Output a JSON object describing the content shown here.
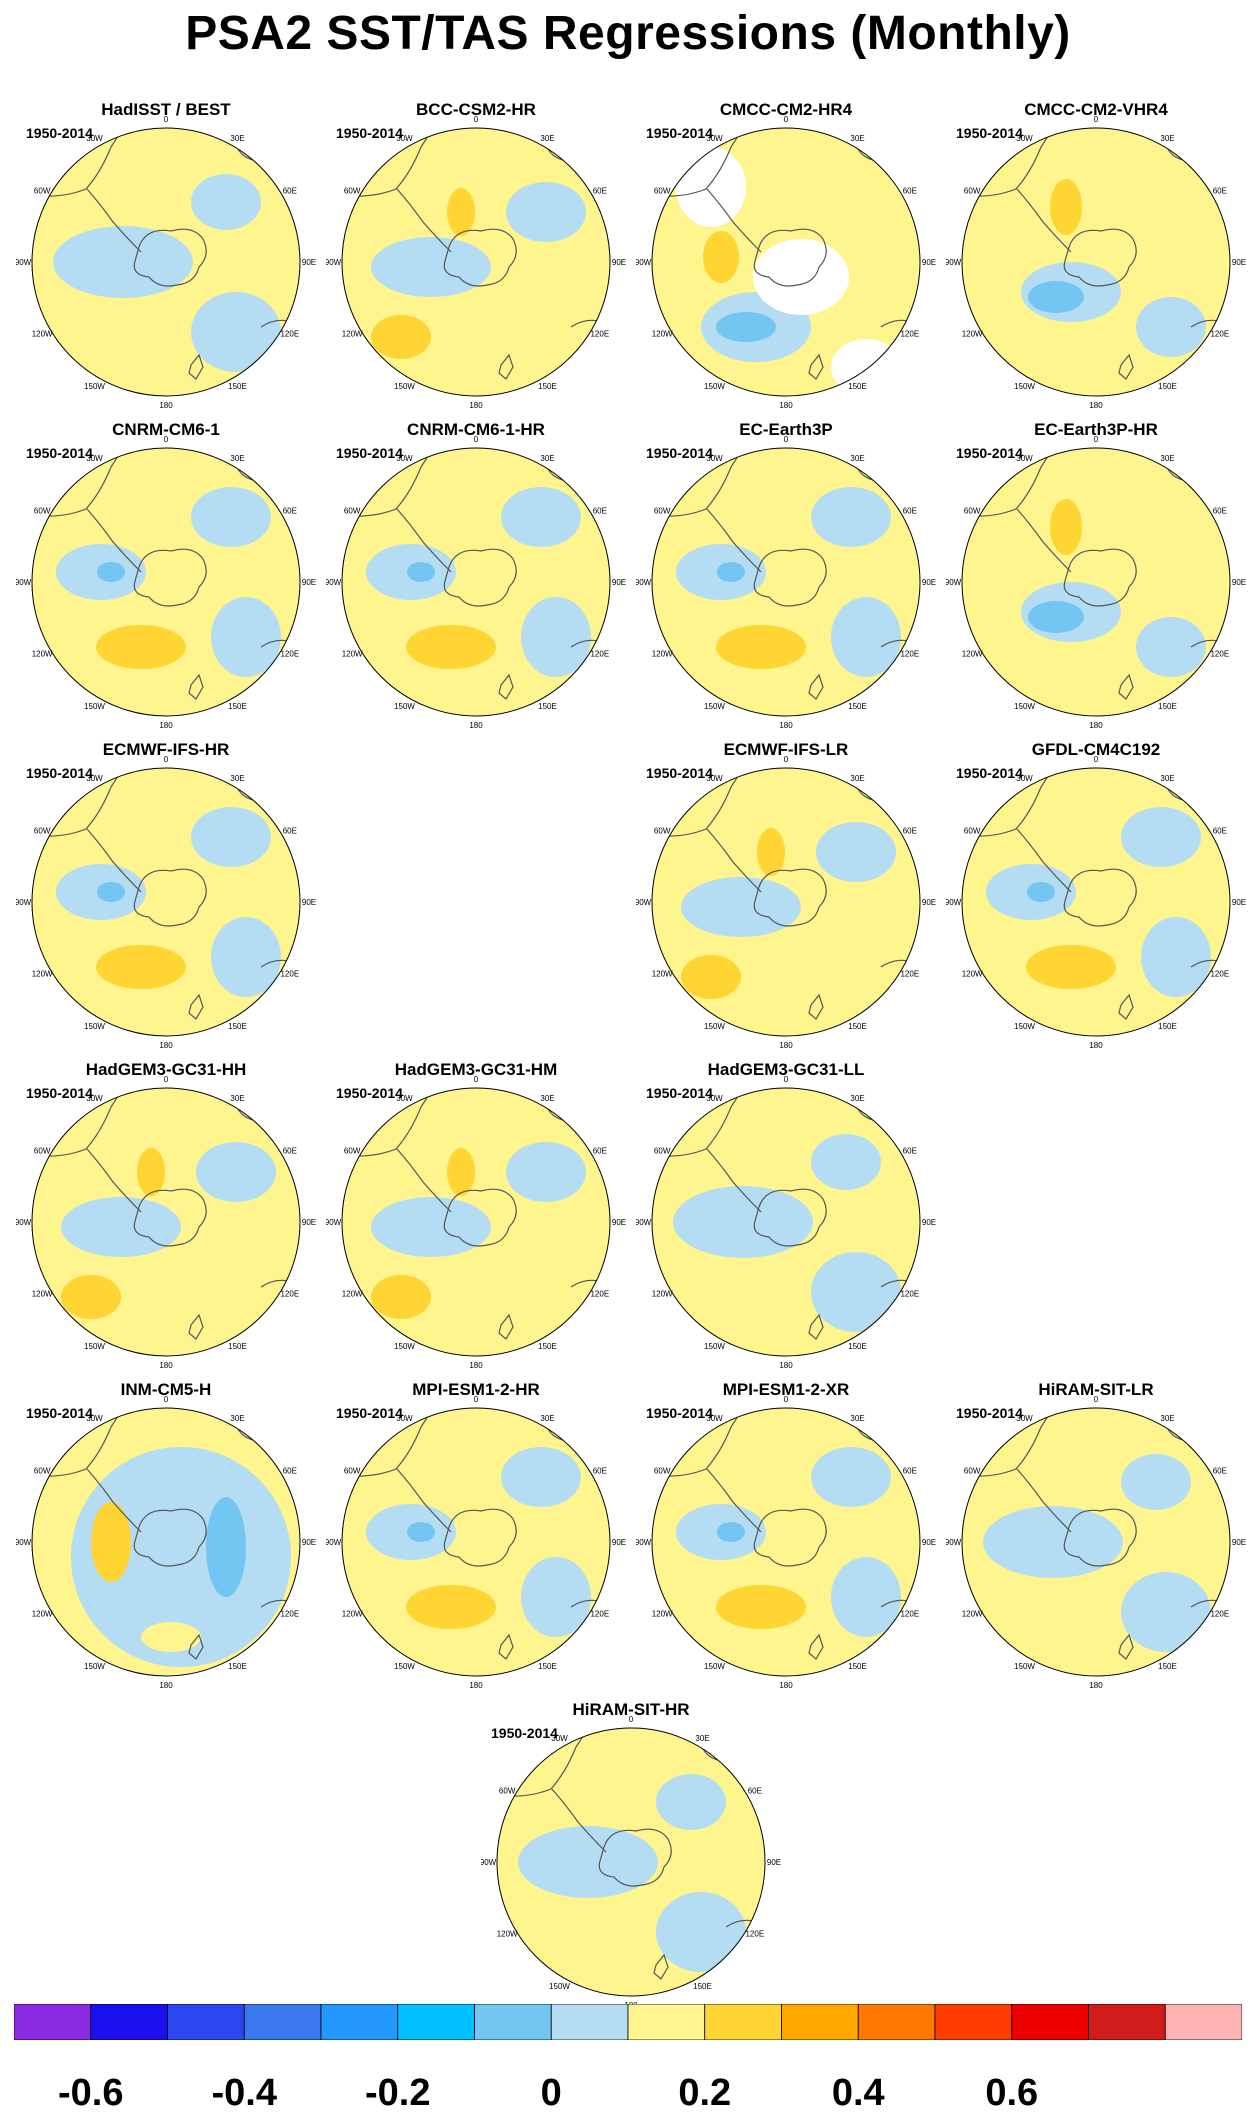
{
  "title": "PSA2 SST/TAS Regressions (Monthly)",
  "period": "1950-2014",
  "lon_labels": [
    "0",
    "30E",
    "60E",
    "90E",
    "120E",
    "150E",
    "180",
    "150W",
    "120W",
    "90W",
    "60W",
    "30W"
  ],
  "panels": [
    {
      "name": "HadISST / BEST",
      "years": "1950-2014",
      "variant": "obs"
    },
    {
      "name": "BCC-CSM2-HR",
      "years": "1950-2014",
      "variant": "a"
    },
    {
      "name": "CMCC-CM2-HR4",
      "years": "1950-2014",
      "variant": "cmcc"
    },
    {
      "name": "CMCC-CM2-VHR4",
      "years": "1950-2014",
      "variant": "b"
    },
    {
      "name": "CNRM-CM6-1",
      "years": "1950-2014",
      "variant": "c"
    },
    {
      "name": "CNRM-CM6-1-HR",
      "years": "1950-2014",
      "variant": "c"
    },
    {
      "name": "EC-Earth3P",
      "years": "1950-2014",
      "variant": "c"
    },
    {
      "name": "EC-Earth3P-HR",
      "years": "1950-2014",
      "variant": "b"
    },
    {
      "name": "ECMWF-IFS-HR",
      "years": "1950-2014",
      "variant": "c"
    },
    {
      "name": "ECMWF-IFS-LR",
      "years": "1950-2014",
      "variant": "a"
    },
    {
      "name": "GFDL-CM4C192",
      "years": "1950-2014",
      "variant": "c"
    },
    {
      "name": "HadGEM3-GC31-HH",
      "years": "1950-2014",
      "variant": "a"
    },
    {
      "name": "HadGEM3-GC31-HM",
      "years": "1950-2014",
      "variant": "a"
    },
    {
      "name": "HadGEM3-GC31-LL",
      "years": "1950-2014",
      "variant": "obs"
    },
    {
      "name": "INM-CM5-H",
      "years": "1950-2014",
      "variant": "inm"
    },
    {
      "name": "MPI-ESM1-2-HR",
      "years": "1950-2014",
      "variant": "c"
    },
    {
      "name": "MPI-ESM1-2-XR",
      "years": "1950-2014",
      "variant": "c"
    },
    {
      "name": "HiRAM-SIT-LR",
      "years": "1950-2014",
      "variant": "obs"
    },
    {
      "name": "HiRAM-SIT-HR",
      "years": "1950-2014",
      "variant": "obs"
    }
  ],
  "colorbar": {
    "colors": [
      "#8a2be2",
      "#1a10f0",
      "#2b48f0",
      "#3a78f0",
      "#2498ff",
      "#00c0ff",
      "#74c6f2",
      "#b4dcf2",
      "#fef58e",
      "#fed532",
      "#ffa800",
      "#ff7800",
      "#ff3c00",
      "#ee0000",
      "#d21c1c",
      "#ffb2b2"
    ],
    "labels": [
      "-0.6",
      "-0.4",
      "-0.2",
      "0",
      "0.2",
      "0.4",
      "0.6"
    ],
    "label_values": [
      -0.6,
      -0.4,
      -0.2,
      0,
      0.2,
      0.4,
      0.6
    ]
  },
  "colors": {
    "land": "#ffffff",
    "coast": "#555555",
    "neg_weak": "#b4dcf2",
    "neg_mid": "#74c6f2",
    "pos_weak": "#fef58e",
    "pos_mid": "#fed532"
  }
}
